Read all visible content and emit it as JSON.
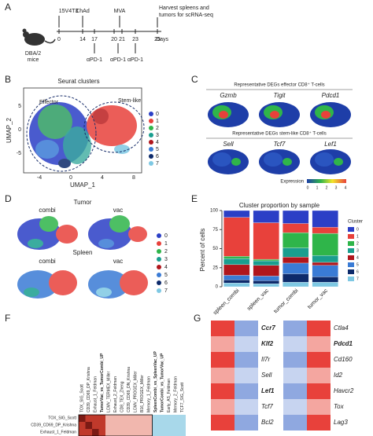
{
  "panel_a": {
    "label": "A",
    "mouse": "DBA/2\nmice",
    "mouse_lines": [
      "DBA/2",
      "mice"
    ],
    "top_events": [
      "15V4T3",
      "ChAd",
      "MVA"
    ],
    "harvest": [
      "Harvest spleens and",
      "tumors for scRNA-seq"
    ],
    "days": [
      "0",
      "14",
      "17",
      "20",
      "21",
      "23",
      "25"
    ],
    "days_label": "Days",
    "treatments": [
      "αPD-1",
      "αPD-1",
      "αPD-1"
    ]
  },
  "panel_b": {
    "label": "B",
    "title": "Seurat clusters",
    "effector": "Effector",
    "stem_like": "Stem-like",
    "xlabel": "UMAP_1",
    "ylabel": "UMAP_2",
    "xticks": [
      "-4",
      "0",
      "4",
      "8"
    ],
    "yticks": [
      "5",
      "0",
      "-5"
    ],
    "legend": [
      "0",
      "1",
      "2",
      "3",
      "4",
      "5",
      "6",
      "7"
    ]
  },
  "panel_c": {
    "label": "C",
    "header_top": "Representative DEGs effector CD8⁺ T-cells",
    "header_bottom": "Representative DEGs stem-like CD8⁺ T-cells",
    "genes_top": [
      "Gzmb",
      "Tigit",
      "Pdcd1"
    ],
    "genes_bottom": [
      "Sell",
      "Tcf7",
      "Lef1"
    ],
    "colorbar_label": "Expression",
    "colorbar_ticks": [
      "0",
      "1",
      "2",
      "3",
      "4"
    ]
  },
  "panel_d": {
    "label": "D",
    "tumor": "Tumor",
    "spleen": "Spleen",
    "combi_1": "combi",
    "vac_1": "vac",
    "combi_2": "combi",
    "vac_2": "vac",
    "legend": [
      "0",
      "1",
      "2",
      "3",
      "4",
      "5",
      "6",
      "7"
    ]
  },
  "chart_data": {
    "type": "bar",
    "panel_label": "E",
    "title": "Cluster proportion by sample",
    "ylabel": "Percent of cells",
    "legend_title": "Cluster",
    "categories": [
      "spleen_combi",
      "spleen_vac",
      "tumor_combi",
      "tumor_vac"
    ],
    "ylim": [
      0,
      100
    ],
    "yticks": [
      0,
      25,
      50,
      75,
      100
    ],
    "stacked": true,
    "series": [
      {
        "name": "0",
        "color": "#2b3fc6",
        "values": [
          9,
          16,
          17,
          22
        ]
      },
      {
        "name": "1",
        "color": "#e8413b",
        "values": [
          51,
          48,
          12,
          8
        ]
      },
      {
        "name": "2",
        "color": "#2fb54a",
        "values": [
          3,
          2,
          20,
          29
        ]
      },
      {
        "name": "3",
        "color": "#1a9e8f",
        "values": [
          8,
          6,
          12,
          9
        ]
      },
      {
        "name": "4",
        "color": "#b0161c",
        "values": [
          14,
          14,
          8,
          4
        ]
      },
      {
        "name": "5",
        "color": "#3a7bd5",
        "values": [
          6,
          6,
          14,
          15
        ]
      },
      {
        "name": "6",
        "color": "#0d2a6b",
        "values": [
          4,
          4,
          11,
          7
        ]
      },
      {
        "name": "7",
        "color": "#7ec8e3",
        "values": [
          5,
          4,
          6,
          6
        ]
      }
    ]
  },
  "panel_f": {
    "label": "F",
    "columns": [
      "TOX_SIG_Scott",
      "CD39_CD69_DP_Krishna",
      "Exhaust_1_Feldman",
      "TumorVac_vs_TumorCombi_UP",
      "LCMV_TERMEX_Miller",
      "Exhaust_2_Feldman",
      "CD8_TEX_Zheng",
      "CD39_CD69_DN_Krishna",
      "LCMV_PROGEX_Miller",
      "B16_PROGEX_Miller",
      "Memory_1_Feldman",
      "SpleenCombi_vs_SpleenVac_UP",
      "TumorCombi_vs_TumorVac_UP",
      "Early_AS_Feldman",
      "Memory_2_Feldman",
      "TCF7_SIG_Scott"
    ],
    "rows": [
      "TOX_SIG_Scott",
      "CD39_CD69_DP_Krishna",
      "Exhaust_1_Feldman"
    ]
  },
  "panel_g": {
    "label": "G",
    "genes_left": [
      "Ccr7",
      "Klf2",
      "Il7r",
      "Sell",
      "Lef1",
      "Tcf7",
      "Bcl2"
    ],
    "genes_right": [
      "Ctla4",
      "Pdcd1",
      "Cd160",
      "Id2",
      "Havcr2",
      "Tox",
      "Lag3"
    ]
  }
}
